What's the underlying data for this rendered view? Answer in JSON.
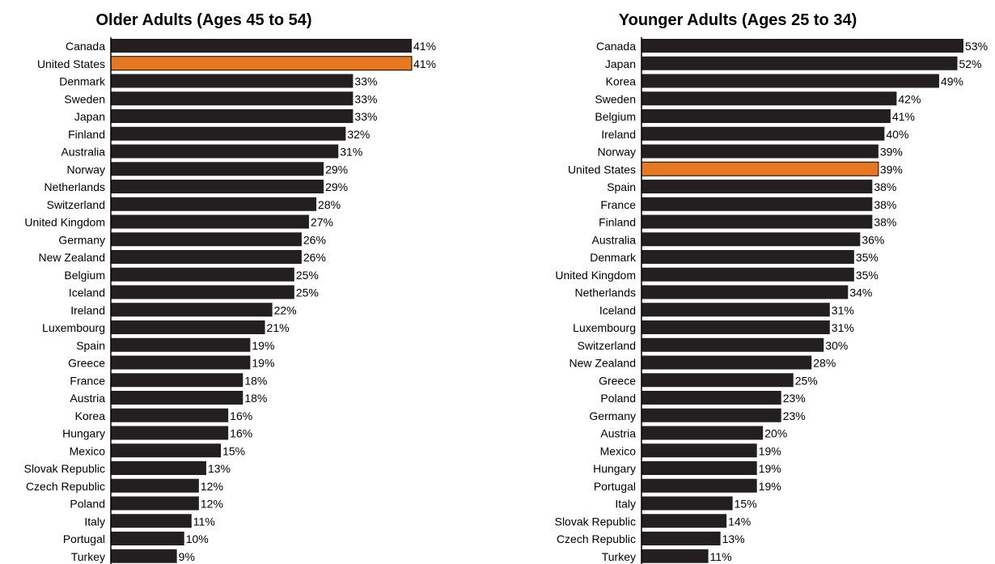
{
  "colors": {
    "bar": "#231f20",
    "highlight": "#e87722",
    "axis": "#000000"
  },
  "chart_data": [
    {
      "type": "bar",
      "orientation": "horizontal",
      "title": "Older Adults (Ages 45 to 54)",
      "xlim": [
        0,
        41
      ],
      "highlight": "United States",
      "categories": [
        "Canada",
        "United States",
        "Denmark",
        "Sweden",
        "Japan",
        "Finland",
        "Australia",
        "Norway",
        "Netherlands",
        "Switzerland",
        "United Kingdom",
        "Germany",
        "New Zealand",
        "Belgium",
        "Iceland",
        "Ireland",
        "Luxembourg",
        "Spain",
        "Greece",
        "France",
        "Austria",
        "Korea",
        "Hungary",
        "Mexico",
        "Slovak Republic",
        "Czech Republic",
        "Poland",
        "Italy",
        "Portugal",
        "Turkey"
      ],
      "values": [
        41,
        41,
        33,
        33,
        33,
        32,
        31,
        29,
        29,
        28,
        27,
        26,
        26,
        25,
        25,
        22,
        21,
        19,
        19,
        18,
        18,
        16,
        16,
        15,
        13,
        12,
        12,
        11,
        10,
        9
      ],
      "value_labels": [
        "41%",
        "41%",
        "33%",
        "33%",
        "33%",
        "32%",
        "31%",
        "29%",
        "29%",
        "28%",
        "27%",
        "26%",
        "26%",
        "25%",
        "25%",
        "22%",
        "21%",
        "19%",
        "19%",
        "18%",
        "18%",
        "16%",
        "16%",
        "15%",
        "13%",
        "12%",
        "12%",
        "11%",
        "10%",
        "9%"
      ]
    },
    {
      "type": "bar",
      "orientation": "horizontal",
      "title": "Younger Adults (Ages 25 to 34)",
      "xlim": [
        0,
        53
      ],
      "highlight": "United States",
      "categories": [
        "Canada",
        "Japan",
        "Korea",
        "Sweden",
        "Belgium",
        "Ireland",
        "Norway",
        "United States",
        "Spain",
        "France",
        "Finland",
        "Australia",
        "Denmark",
        "United Kingdom",
        "Netherlands",
        "Iceland",
        "Luxembourg",
        "Switzerland",
        "New Zealand",
        "Greece",
        "Poland",
        "Germany",
        "Austria",
        "Mexico",
        "Hungary",
        "Portugal",
        "Italy",
        "Slovak Republic",
        "Czech Republic",
        "Turkey"
      ],
      "values": [
        53,
        52,
        49,
        42,
        41,
        40,
        39,
        39,
        38,
        38,
        38,
        36,
        35,
        35,
        34,
        31,
        31,
        30,
        28,
        25,
        23,
        23,
        20,
        19,
        19,
        19,
        15,
        14,
        13,
        11
      ],
      "value_labels": [
        "53%",
        "52%",
        "49%",
        "42%",
        "41%",
        "40%",
        "39%",
        "39%",
        "38%",
        "38%",
        "38%",
        "36%",
        "35%",
        "35%",
        "34%",
        "31%",
        "31%",
        "30%",
        "28%",
        "25%",
        "23%",
        "23%",
        "20%",
        "19%",
        "19%",
        "19%",
        "15%",
        "14%",
        "13%",
        "11%"
      ]
    }
  ]
}
